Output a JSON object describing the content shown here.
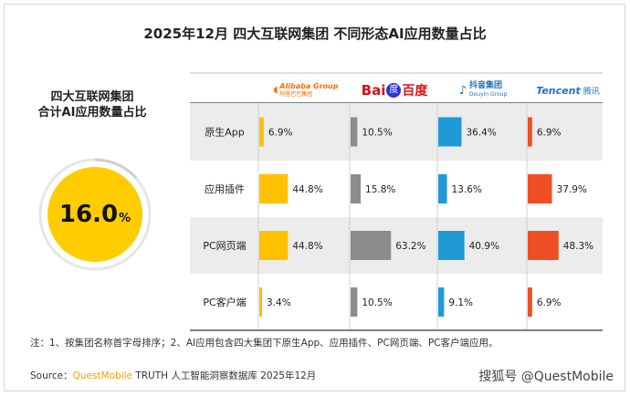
{
  "title": "2025年12月 四大互联网集团 不同形态AI应用数量占比",
  "summary": {
    "label_line1": "四大互联网集团",
    "label_line2": "合计AI应用数量占比",
    "value": "16.0",
    "unit": "%"
  },
  "logos": [
    {
      "name": "alibaba-logo",
      "text": "Alibaba Group",
      "sub": "阿里巴巴集团",
      "color": "#ff6a00"
    },
    {
      "name": "baidu-logo",
      "text": "Bai",
      "mark": "度",
      "cn": "百度",
      "color": "#2932e1",
      "red": "#de0f17"
    },
    {
      "name": "douyin-logo",
      "text": "抖音集团",
      "sub": "Douyin Group",
      "color": "#1e6fb8"
    },
    {
      "name": "tencent-logo",
      "text": "Tencent",
      "cn": "腾讯",
      "color": "#1e6fd9"
    }
  ],
  "chart_data": {
    "type": "bar",
    "title": "2025年12月 四大互联网集团 不同形态AI应用数量占比",
    "categories": [
      "原生App",
      "应用插件",
      "PC网页端",
      "PC客户端"
    ],
    "unit": "%",
    "series": [
      {
        "name": "Alibaba Group 阿里巴巴集团",
        "color": "#ffc000",
        "values": [
          6.9,
          44.8,
          44.8,
          3.4
        ]
      },
      {
        "name": "百度",
        "color": "#8c8c8c",
        "values": [
          10.5,
          15.8,
          63.2,
          10.5
        ]
      },
      {
        "name": "抖音集团",
        "color": "#1f9ad6",
        "values": [
          36.4,
          13.6,
          40.9,
          9.1
        ]
      },
      {
        "name": "Tencent 腾讯",
        "color": "#f04e23",
        "values": [
          6.9,
          37.9,
          48.3,
          6.9
        ]
      }
    ],
    "labels": [
      [
        "6.9%",
        "10.5%",
        "36.4%",
        "6.9%"
      ],
      [
        "44.8%",
        "15.8%",
        "13.6%",
        "37.9%"
      ],
      [
        "44.8%",
        "63.2%",
        "40.9%",
        "48.3%"
      ],
      [
        "3.4%",
        "10.5%",
        "9.1%",
        "6.9%"
      ]
    ],
    "row_shading": [
      "#ececec",
      "#ffffff",
      "#ececec",
      "#ffffff"
    ]
  },
  "footnote": "注：1、按集团名称首字母排序；2、AI应用包含四大集团下原生App、应用插件、PC网页端、PC客户端应用。",
  "source": {
    "prefix": "Source：",
    "brand": "QuestMobile",
    "rest": " TRUTH 人工智能洞察数据库 2025年12月"
  },
  "watermark": "搜狐号 @QuestMobile"
}
